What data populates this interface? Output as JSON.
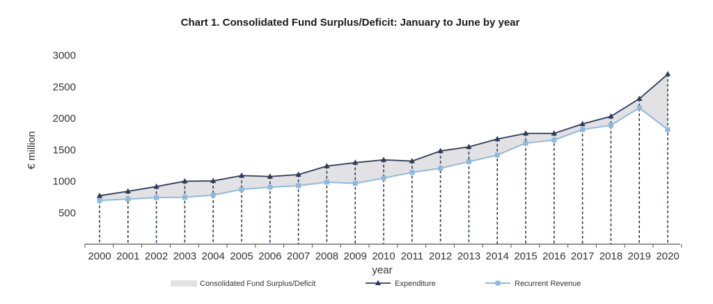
{
  "chart_data": {
    "type": "line",
    "title": "Chart 1. Consolidated Fund Surplus/Deficit: January to June by year",
    "xlabel": "year",
    "ylabel": "€ million",
    "ylim": [
      0,
      3000
    ],
    "yticks": [
      "500",
      "1000",
      "1500",
      "2000",
      "2500",
      "3000"
    ],
    "categories": [
      "2000",
      "2001",
      "2002",
      "2003",
      "2004",
      "2005",
      "2006",
      "2007",
      "2008",
      "2009",
      "2010",
      "2011",
      "2012",
      "2013",
      "2014",
      "2015",
      "2016",
      "2017",
      "2018",
      "2019",
      "2020"
    ],
    "series": [
      {
        "name": "Expenditure",
        "color": "#2e3a59",
        "marker": "triangle",
        "values": [
          770,
          840,
          915,
          1000,
          1005,
          1090,
          1075,
          1105,
          1240,
          1295,
          1340,
          1320,
          1480,
          1545,
          1670,
          1760,
          1760,
          1910,
          2030,
          2310,
          2700
        ]
      },
      {
        "name": "Recurrent Revenue",
        "color": "#8fb8df",
        "marker": "square",
        "values": [
          695,
          715,
          740,
          745,
          780,
          870,
          905,
          930,
          985,
          965,
          1050,
          1140,
          1205,
          1310,
          1415,
          1605,
          1655,
          1820,
          1890,
          2165,
          1820
        ]
      }
    ],
    "area": {
      "name": "Consolidated Fund Surplus/Deficit",
      "color": "#e2e2e4"
    },
    "drop_lines": true,
    "grid": false,
    "legend_position": "bottom"
  }
}
